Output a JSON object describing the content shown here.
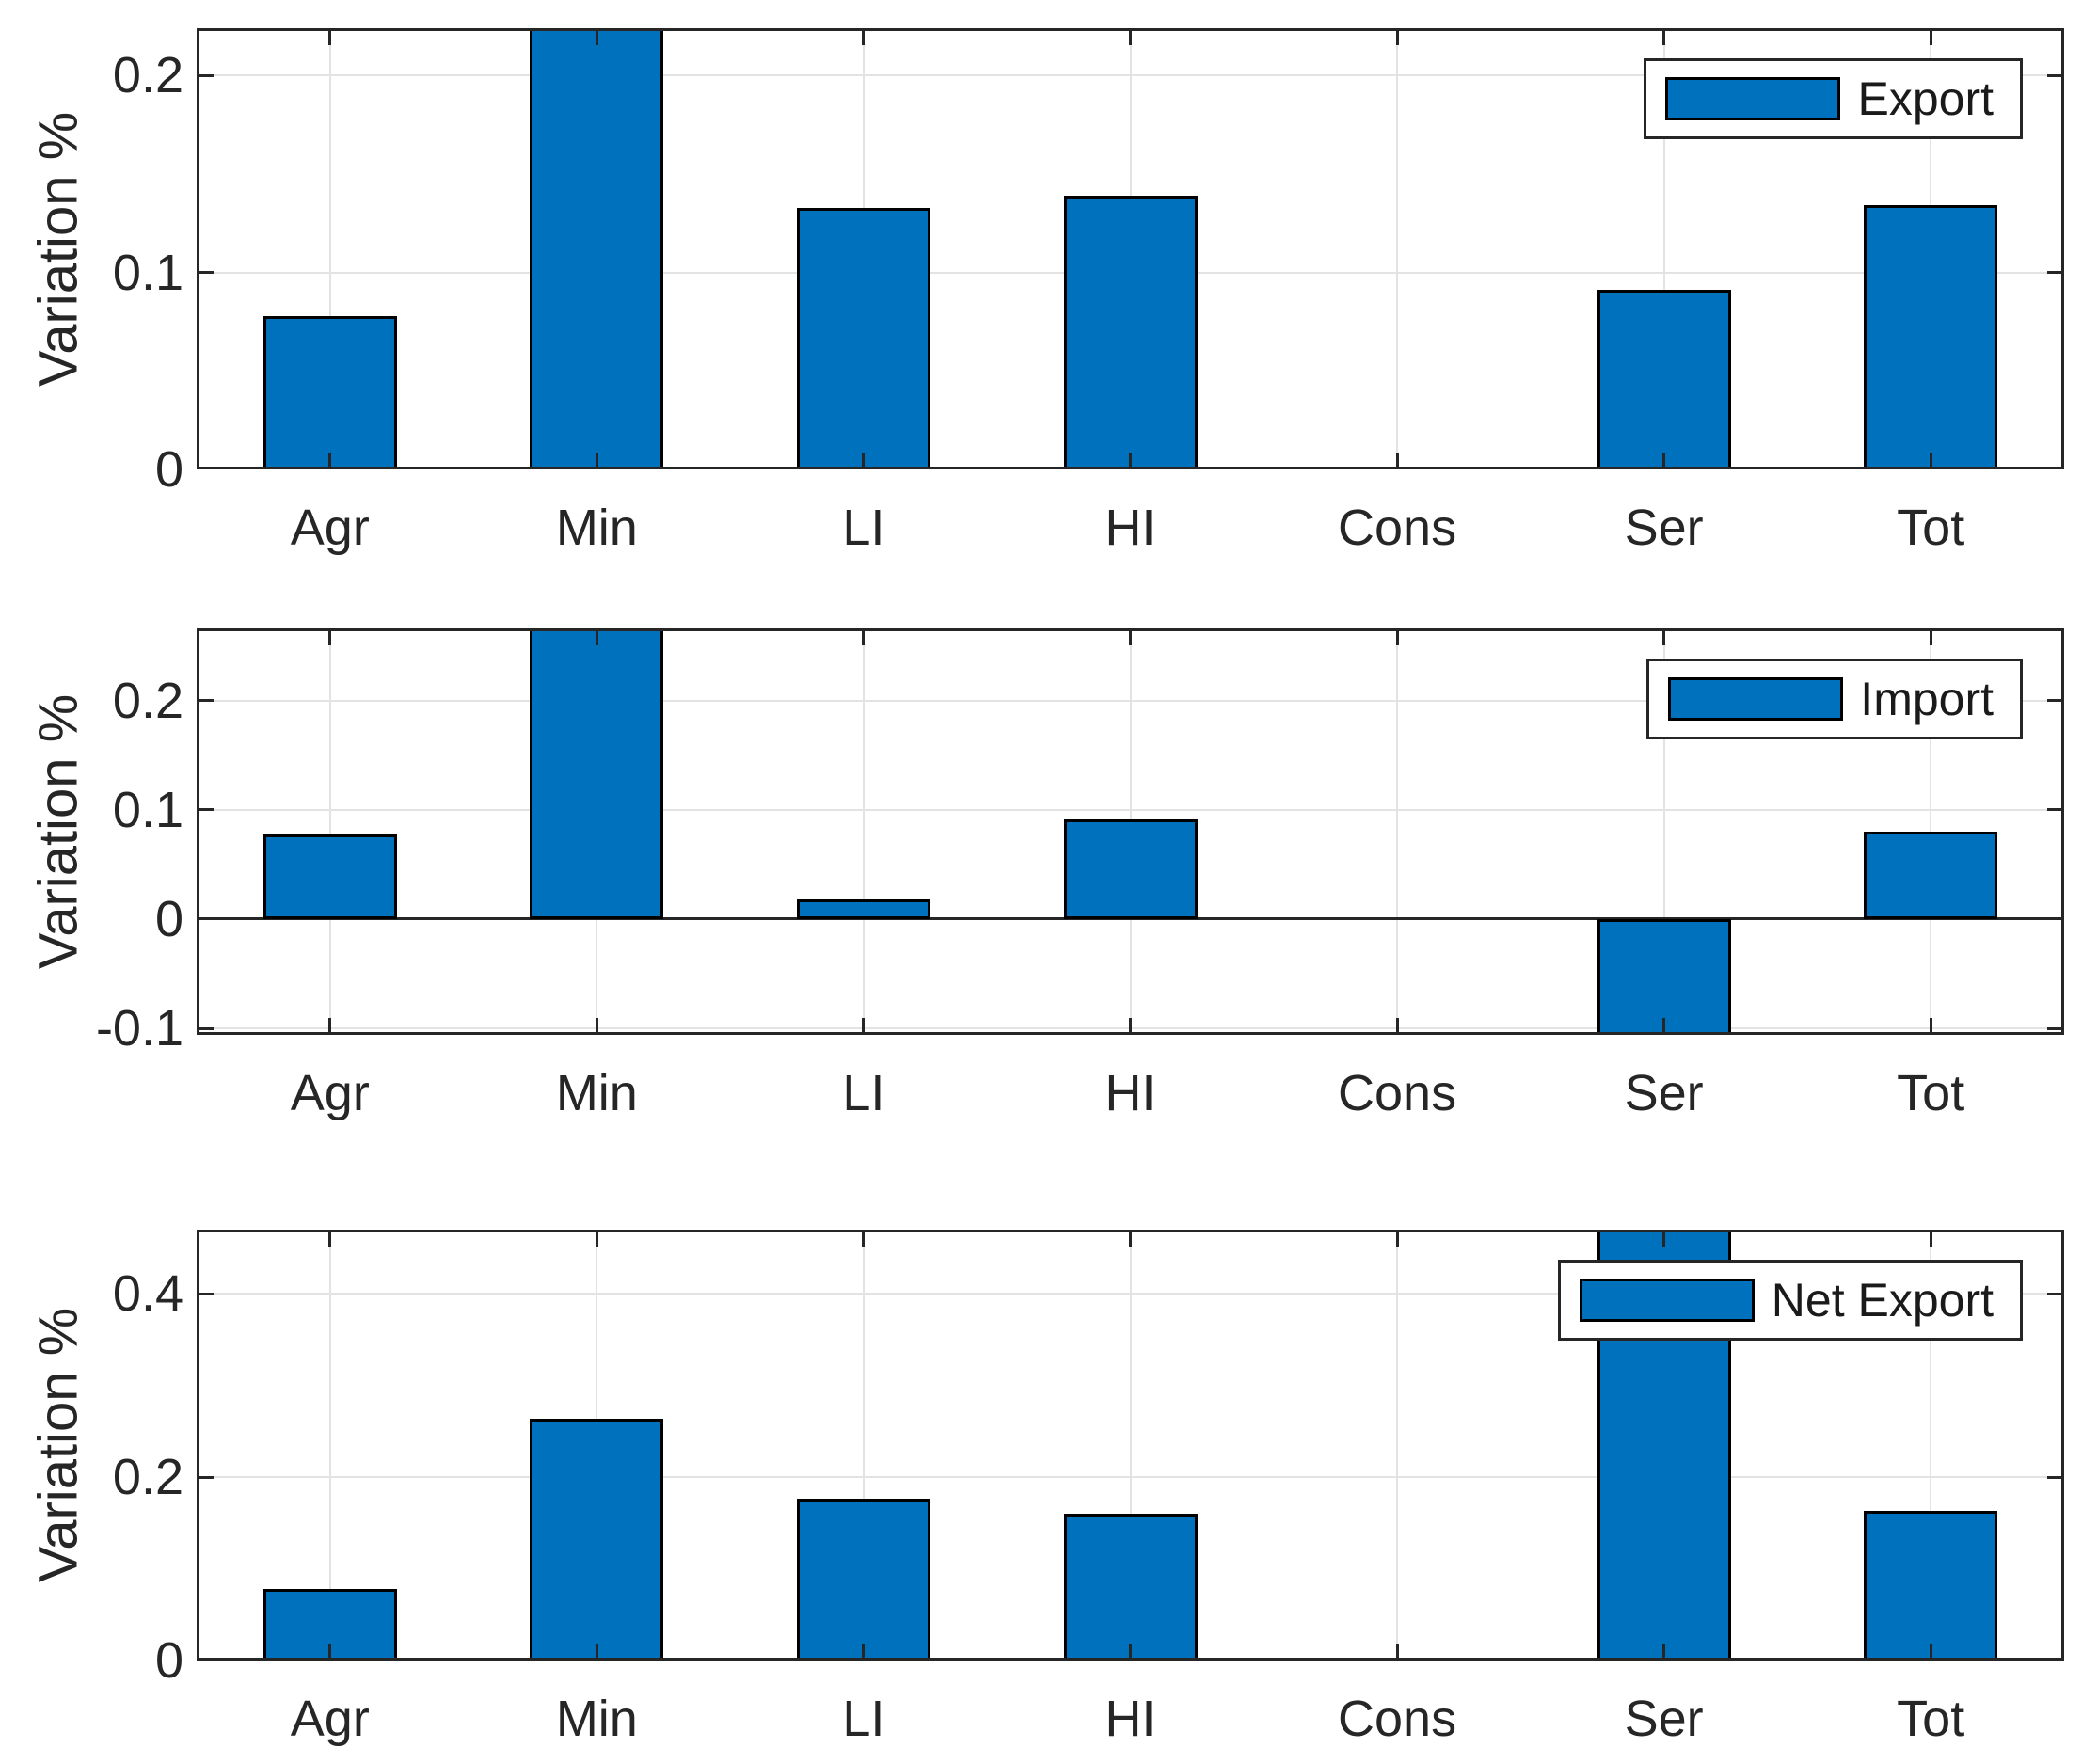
{
  "figure": {
    "background": "#ffffff",
    "axis_color": "#262626",
    "grid_color": "#e3e3e3",
    "text_color": "#262626"
  },
  "chart_data": [
    {
      "type": "bar",
      "legend": "Export",
      "legend_position": "top-right",
      "ylabel": "Variation %",
      "xlabel": "",
      "categories": [
        "Agr",
        "Min",
        "LI",
        "HI",
        "Cons",
        "Ser",
        "Tot"
      ],
      "values": [
        0.078,
        0.224,
        0.133,
        0.139,
        0,
        0.091,
        0.134
      ],
      "clipped": [
        false,
        true,
        false,
        false,
        false,
        false,
        false
      ],
      "ylim": [
        0,
        0.224
      ],
      "yticks": [
        0,
        0.1,
        0.2
      ],
      "ytick_labels": [
        "0",
        "0.1",
        "0.2"
      ],
      "grid": true,
      "bar_color": "#0072BD",
      "bar_edge_color": "#000000",
      "bar_width_fraction": 0.5
    },
    {
      "type": "bar",
      "legend": "Import",
      "legend_position": "top-right",
      "ylabel": "Variation %",
      "xlabel": "",
      "categories": [
        "Agr",
        "Min",
        "LI",
        "HI",
        "Cons",
        "Ser",
        "Tot"
      ],
      "values": [
        0.077,
        0.266,
        0.018,
        0.091,
        0,
        -0.106,
        0.08
      ],
      "clipped": [
        false,
        true,
        false,
        false,
        false,
        true,
        false
      ],
      "ylim": [
        -0.106,
        0.266
      ],
      "yticks": [
        -0.1,
        0,
        0.1,
        0.2
      ],
      "ytick_labels": [
        "-0.1",
        "0",
        "0.1",
        "0.2"
      ],
      "grid": true,
      "bar_color": "#0072BD",
      "bar_edge_color": "#000000",
      "bar_width_fraction": 0.5
    },
    {
      "type": "bar",
      "legend": "Net Export",
      "legend_position": "top-right",
      "ylabel": "Variation %",
      "xlabel": "",
      "categories": [
        "Agr",
        "Min",
        "LI",
        "HI",
        "Cons",
        "Ser",
        "Tot"
      ],
      "values": [
        0.078,
        0.264,
        0.176,
        0.16,
        0,
        0.47,
        0.163
      ],
      "clipped": [
        false,
        false,
        false,
        false,
        false,
        true,
        false
      ],
      "ylim": [
        0,
        0.47
      ],
      "yticks": [
        0,
        0.2,
        0.4
      ],
      "ytick_labels": [
        "0",
        "0.2",
        "0.4"
      ],
      "grid": true,
      "bar_color": "#0072BD",
      "bar_edge_color": "#000000",
      "bar_width_fraction": 0.5
    }
  ]
}
